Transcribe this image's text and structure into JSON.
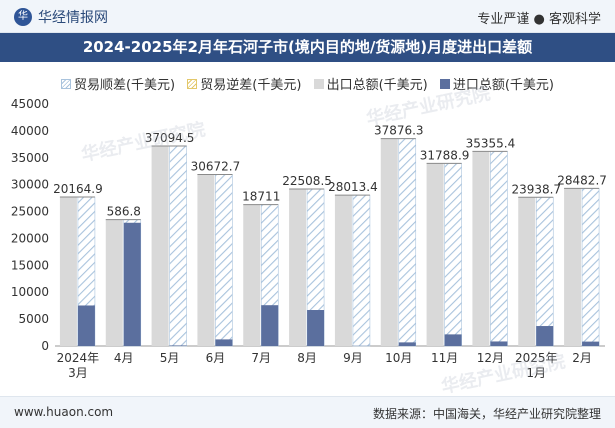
{
  "header": {
    "brand": "华经情报网",
    "tagline": "专业严谨 ● 客观科学"
  },
  "watermark": "华经产业研究院",
  "footer": {
    "url": "www.huaon.com",
    "source": "数据来源：中国海关，华经产业研究院整理"
  },
  "colors": {
    "export": "#d9d9d9",
    "import": "#5b6f9e",
    "surplus": "#a9c3dd",
    "deficit": "#e3c86b",
    "title_bg": "#2f4f84"
  },
  "chart_data": {
    "type": "bar",
    "title": "2024-2025年2月年石河子市(境内目的地/货源地)月度进出口差额",
    "categories": [
      "2024年3月",
      "4月",
      "5月",
      "6月",
      "7月",
      "8月",
      "9月",
      "10月",
      "11月",
      "12月",
      "2025年1月",
      "2月"
    ],
    "ylim": [
      0,
      45000
    ],
    "yticks": [
      0,
      5000,
      10000,
      15000,
      20000,
      25000,
      30000,
      35000,
      40000,
      45000
    ],
    "legend_position": "top",
    "series": [
      {
        "name": "贸易顺差(千美元)",
        "values": [
          20164.9,
          586.8,
          37094.5,
          30672.7,
          18711,
          22508.5,
          28013.4,
          37876.3,
          31788.9,
          35355.4,
          23938.7,
          28482.7
        ]
      },
      {
        "name": "贸易逆差(千美元)",
        "values": [
          0,
          0,
          0,
          0,
          0,
          0,
          0,
          0,
          0,
          0,
          0,
          0
        ]
      },
      {
        "name": "出口总额(千美元)",
        "values": [
          27700,
          23500,
          37200,
          31900,
          26300,
          29200,
          28050,
          38550,
          33950,
          36200,
          27650,
          29300
        ]
      },
      {
        "name": "进口总额(千美元)",
        "values": [
          7535.1,
          22913.2,
          105.5,
          1227.3,
          7589,
          6691.5,
          36.6,
          673.7,
          2161.1,
          844.6,
          3711.3,
          817.3
        ]
      }
    ],
    "data_labels": [
      "20164.9",
      "586.8",
      "37094.5",
      "30672.7",
      "18711",
      "22508.5",
      "28013.4",
      "37876.3",
      "31788.9",
      "35355.4",
      "23938.7",
      "28482.7"
    ]
  }
}
